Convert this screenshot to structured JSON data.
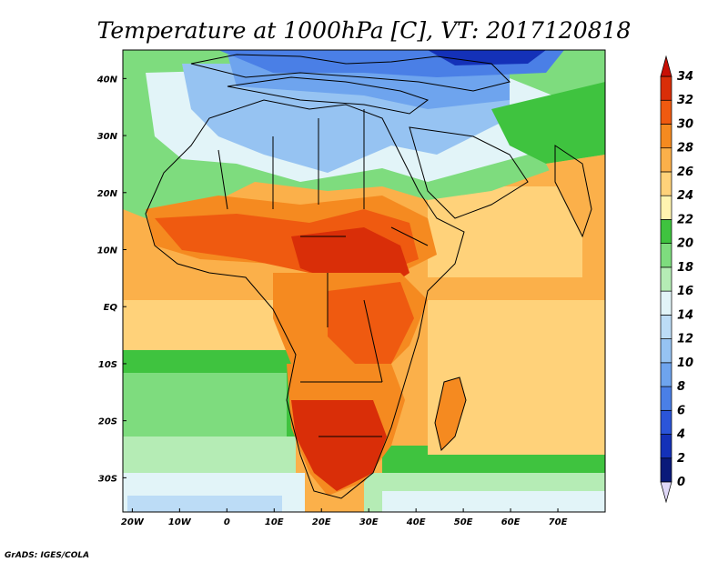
{
  "title": "Temperature at 1000hPa [C], VT: 2017120818",
  "credit": "GrADS: IGES/COLA",
  "map": {
    "lon_range": [
      -22,
      80
    ],
    "lat_range": [
      -36,
      45
    ],
    "lon_ticks": [
      {
        "value": -20,
        "label": "20W"
      },
      {
        "value": -10,
        "label": "10W"
      },
      {
        "value": 0,
        "label": "0"
      },
      {
        "value": 10,
        "label": "10E"
      },
      {
        "value": 20,
        "label": "20E"
      },
      {
        "value": 30,
        "label": "30E"
      },
      {
        "value": 40,
        "label": "40E"
      },
      {
        "value": 50,
        "label": "50E"
      },
      {
        "value": 60,
        "label": "60E"
      },
      {
        "value": 70,
        "label": "70E"
      }
    ],
    "lat_ticks": [
      {
        "value": 40,
        "label": "40N"
      },
      {
        "value": 30,
        "label": "30N"
      },
      {
        "value": 20,
        "label": "20N"
      },
      {
        "value": 10,
        "label": "10N"
      },
      {
        "value": 0,
        "label": "EQ"
      },
      {
        "value": -10,
        "label": "10S"
      },
      {
        "value": -20,
        "label": "20S"
      },
      {
        "value": -30,
        "label": "30S"
      }
    ]
  },
  "colorbar": {
    "levels": [
      0,
      2,
      4,
      6,
      8,
      10,
      12,
      14,
      16,
      18,
      20,
      22,
      24,
      26,
      28,
      30,
      32,
      34
    ],
    "colors": [
      "#0a1a7a",
      "#1431b8",
      "#2b55d9",
      "#4a7fe6",
      "#6ea4ee",
      "#96c3f2",
      "#bcdcf6",
      "#e2f4f8",
      "#b5ecb5",
      "#7edc7e",
      "#3fc33f",
      "#fff4b0",
      "#ffd27a",
      "#fbb04a",
      "#f58a20",
      "#ef5a10",
      "#d92e08",
      "#c81005"
    ],
    "under_color": "#e0d8f8",
    "over_color": "#c81005"
  }
}
